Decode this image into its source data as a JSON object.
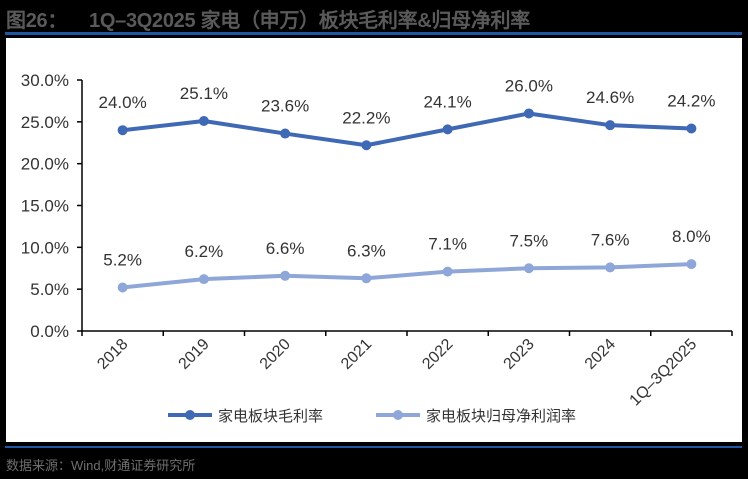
{
  "figure": {
    "label": "图26：",
    "title": "1Q–3Q2025 家电（申万）板块毛利率&归母净利率",
    "source": "数据来源：Wind,财通证券研究所"
  },
  "colors": {
    "rule": "#1f57a4",
    "series_gross": "#3f68b5",
    "series_net": "#8fa7d8"
  },
  "chart_data": {
    "type": "line",
    "title": "1Q–3Q2025 家电（申万）板块毛利率&归母净利率",
    "xlabel": "",
    "ylabel": "",
    "categories": [
      "2018",
      "2019",
      "2020",
      "2021",
      "2022",
      "2023",
      "2024",
      "1Q–3Q2025"
    ],
    "series": [
      {
        "name": "家电板块毛利率",
        "values": [
          24.0,
          25.1,
          23.6,
          22.2,
          24.1,
          26.0,
          24.6,
          24.2
        ],
        "labels": [
          "24.0%",
          "25.1%",
          "23.6%",
          "22.2%",
          "24.1%",
          "26.0%",
          "24.6%",
          "24.2%"
        ]
      },
      {
        "name": "家电板块归母净利润率",
        "values": [
          5.2,
          6.2,
          6.6,
          6.3,
          7.1,
          7.5,
          7.6,
          8.0
        ],
        "labels": [
          "5.2%",
          "6.2%",
          "6.6%",
          "6.3%",
          "7.1%",
          "7.5%",
          "7.6%",
          "8.0%"
        ]
      }
    ],
    "ylim": [
      0,
      30
    ],
    "yticks": [
      "0.0%",
      "5.0%",
      "10.0%",
      "15.0%",
      "20.0%",
      "25.0%",
      "30.0%"
    ],
    "grid": false,
    "legend_position": "bottom"
  },
  "legend": {
    "items": [
      {
        "label": "家电板块毛利率"
      },
      {
        "label": "家电板块归母净利润率"
      }
    ]
  }
}
